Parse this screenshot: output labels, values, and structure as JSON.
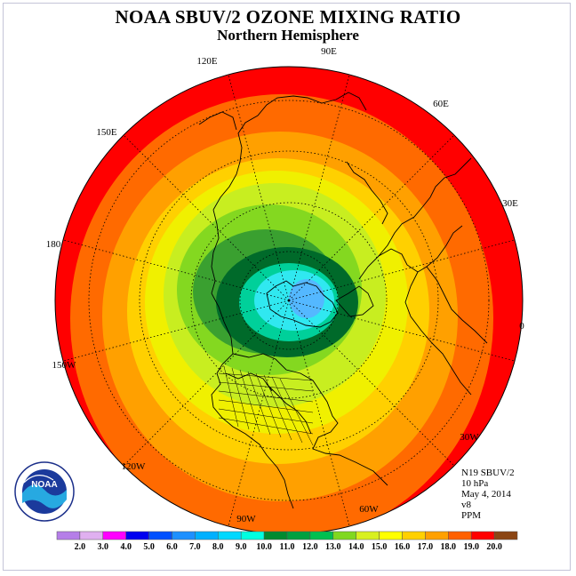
{
  "title": "NOAA SBUV/2 OZONE MIXING RATIO",
  "subtitle": "Northern Hemisphere",
  "longitude_labels": [
    {
      "id": "90e",
      "text": "90E"
    },
    {
      "id": "60e",
      "text": "60E"
    },
    {
      "id": "30e",
      "text": "30E"
    },
    {
      "id": "0",
      "text": "0"
    },
    {
      "id": "30w",
      "text": "30W"
    },
    {
      "id": "60w",
      "text": "60W"
    },
    {
      "id": "90w",
      "text": "90W"
    },
    {
      "id": "120w",
      "text": "120W"
    },
    {
      "id": "150w",
      "text": "150W"
    },
    {
      "id": "180",
      "text": "180"
    },
    {
      "id": "150e",
      "text": "150E"
    },
    {
      "id": "120e",
      "text": "120E"
    }
  ],
  "info": {
    "satellite": "N19 SBUV/2",
    "level": "10 hPa",
    "date": "May 4, 2014",
    "version": "v8",
    "units": "PPM"
  },
  "colorbar": {
    "ticks": [
      "2.0",
      "3.0",
      "4.0",
      "5.0",
      "6.0",
      "7.0",
      "8.0",
      "9.0",
      "10.0",
      "11.0",
      "12.0",
      "13.0",
      "14.0",
      "15.0",
      "16.0",
      "17.0",
      "18.0",
      "19.0",
      "20.0"
    ],
    "colors": [
      "#b57ee8",
      "#e0b0f0",
      "#ff00ff",
      "#0000f0",
      "#0050ff",
      "#1e90ff",
      "#00b0ff",
      "#00d8ff",
      "#00ffe0",
      "#008a30",
      "#00a040",
      "#00c050",
      "#80d820",
      "#d8f020",
      "#ffff00",
      "#ffd000",
      "#ffa000",
      "#ff6000",
      "#ff0000",
      "#8b4513"
    ]
  },
  "colors": {
    "contour_bands": [
      "#ff0000",
      "#ff6a00",
      "#ffa000",
      "#ffd000",
      "#f0f000",
      "#c8ee20",
      "#84d820",
      "#3aa030",
      "#006a2a",
      "#00d09a",
      "#30e8f0",
      "#54b8ff"
    ]
  },
  "logo": {
    "text": "NOAA"
  }
}
